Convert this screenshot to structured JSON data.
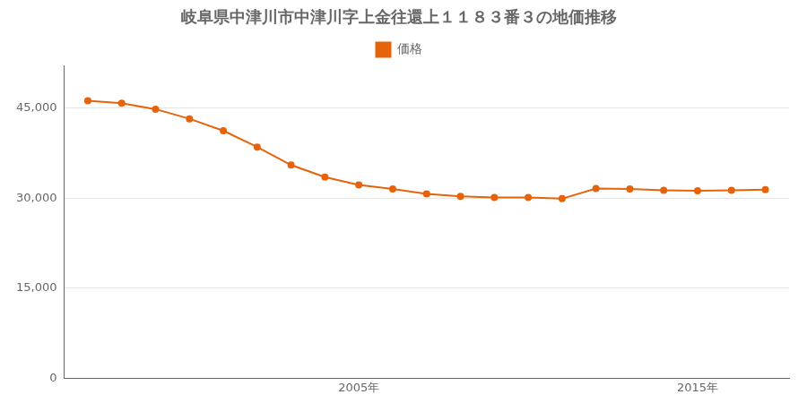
{
  "chart_data": {
    "type": "line",
    "title": "岐阜県中津川市中津川字上金往還上１１８３番３の地価推移",
    "x": [
      1997,
      1998,
      1999,
      2000,
      2001,
      2002,
      2003,
      2004,
      2005,
      2006,
      2007,
      2008,
      2009,
      2010,
      2011,
      2012,
      2013,
      2014,
      2015,
      2016,
      2017
    ],
    "series": [
      {
        "name": "価格",
        "color": "#e8620a",
        "marker": "circle",
        "values": [
          46200,
          45800,
          44800,
          43200,
          41200,
          38500,
          35500,
          33500,
          32200,
          31500,
          30700,
          30300,
          30100,
          30100,
          29900,
          31600,
          31500,
          31300,
          31200,
          31300,
          31400
        ]
      }
    ],
    "xlim": [
      1996.3,
      2017.7
    ],
    "xticks": [
      {
        "value": 2005,
        "label": "2005年"
      },
      {
        "value": 2015,
        "label": "2015年"
      }
    ],
    "ylim": [
      0,
      52000
    ],
    "yticks": [
      0,
      {
        "value": 15000,
        "label": "15,000"
      },
      {
        "value": 30000,
        "label": "30,000"
      },
      {
        "value": 45000,
        "label": "45,000"
      }
    ],
    "grid": "y",
    "legend": "top"
  }
}
